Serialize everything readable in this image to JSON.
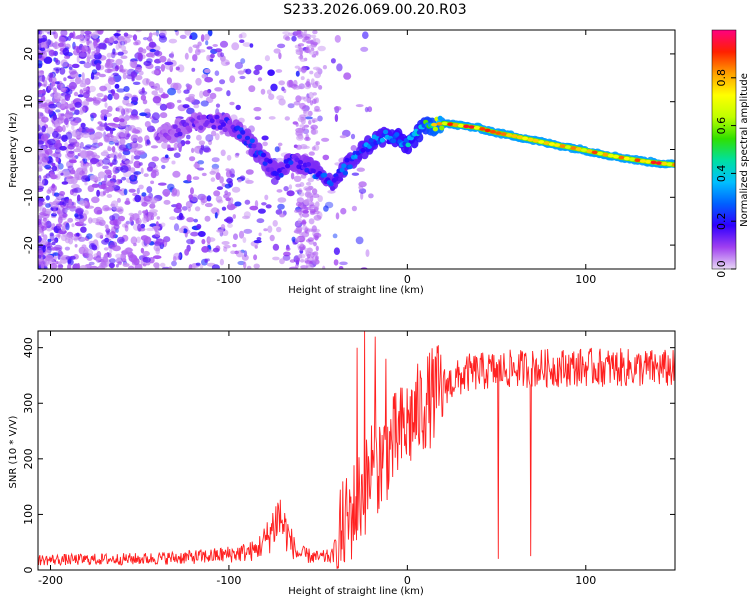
{
  "title": "S233.2026.069.00.20.R03",
  "chart_data": [
    {
      "type": "heatmap",
      "name": "spectrogram",
      "xlabel": "Height of straight line (km)",
      "ylabel": "Frequency (Hz)",
      "xlim": [
        -207,
        150
      ],
      "ylim": [
        -25,
        25
      ],
      "xticks": [
        "-200",
        "-100",
        "0",
        "100"
      ],
      "yticks": [
        "-20",
        "-10",
        "0",
        "10",
        "20"
      ],
      "colorbar": {
        "label": "Normalized spectral amplitude",
        "ticks": [
          "0.0",
          "0.2",
          "0.4",
          "0.6",
          "0.8"
        ],
        "range": [
          0,
          1
        ],
        "colors": [
          "#e8d8f5",
          "#a040f0",
          "#3000ff",
          "#0060ff",
          "#00c0ff",
          "#00e0a0",
          "#30e000",
          "#c0ff00",
          "#ffff00",
          "#ffa000",
          "#ff2000",
          "#ff0080"
        ]
      },
      "signal_trace": [
        {
          "x": -140,
          "f": 3.0,
          "a": 0.15
        },
        {
          "x": -130,
          "f": 4.0,
          "a": 0.18
        },
        {
          "x": -120,
          "f": 5.5,
          "a": 0.2
        },
        {
          "x": -110,
          "f": 6.0,
          "a": 0.22
        },
        {
          "x": -100,
          "f": 5.0,
          "a": 0.25
        },
        {
          "x": -92,
          "f": 3.0,
          "a": 0.3
        },
        {
          "x": -85,
          "f": 0.0,
          "a": 0.32
        },
        {
          "x": -78,
          "f": -3.0,
          "a": 0.3
        },
        {
          "x": -72,
          "f": -5.0,
          "a": 0.32
        },
        {
          "x": -65,
          "f": -2.5,
          "a": 0.3
        },
        {
          "x": -58,
          "f": -3.0,
          "a": 0.3
        },
        {
          "x": -50,
          "f": -5.0,
          "a": 0.35
        },
        {
          "x": -42,
          "f": -7.0,
          "a": 0.35
        },
        {
          "x": -35,
          "f": -4.0,
          "a": 0.4
        },
        {
          "x": -28,
          "f": -1.0,
          "a": 0.4
        },
        {
          "x": -20,
          "f": 1.5,
          "a": 0.45
        },
        {
          "x": -12,
          "f": 3.0,
          "a": 0.45
        },
        {
          "x": -5,
          "f": 2.0,
          "a": 0.5
        },
        {
          "x": 0,
          "f": 1.0,
          "a": 0.5
        },
        {
          "x": 5,
          "f": 3.0,
          "a": 0.55
        },
        {
          "x": 12,
          "f": 5.0,
          "a": 0.7
        },
        {
          "x": 20,
          "f": 5.5,
          "a": 0.9
        },
        {
          "x": 30,
          "f": 5.0,
          "a": 0.95
        },
        {
          "x": 40,
          "f": 4.5,
          "a": 0.95
        },
        {
          "x": 50,
          "f": 3.5,
          "a": 0.95
        },
        {
          "x": 60,
          "f": 2.8,
          "a": 0.95
        },
        {
          "x": 70,
          "f": 2.0,
          "a": 0.95
        },
        {
          "x": 80,
          "f": 1.2,
          "a": 0.95
        },
        {
          "x": 90,
          "f": 0.5,
          "a": 0.95
        },
        {
          "x": 100,
          "f": -0.2,
          "a": 0.95
        },
        {
          "x": 110,
          "f": -1.0,
          "a": 0.95
        },
        {
          "x": 120,
          "f": -1.7,
          "a": 0.95
        },
        {
          "x": 130,
          "f": -2.3,
          "a": 0.95
        },
        {
          "x": 140,
          "f": -2.8,
          "a": 0.95
        },
        {
          "x": 150,
          "f": -3.2,
          "a": 0.95
        }
      ]
    },
    {
      "type": "line",
      "name": "snr",
      "xlabel": "Height of straight line (km)",
      "ylabel": "SNR (10 * V/V)",
      "xlim": [
        -207,
        150
      ],
      "ylim": [
        0,
        430
      ],
      "xticks": [
        "-200",
        "-100",
        "0",
        "100"
      ],
      "yticks": [
        "0",
        "100",
        "200",
        "300",
        "400"
      ],
      "color": "#ff2020",
      "envelope": [
        {
          "x": -207,
          "y": 18
        },
        {
          "x": -150,
          "y": 20
        },
        {
          "x": -130,
          "y": 22
        },
        {
          "x": -110,
          "y": 25
        },
        {
          "x": -95,
          "y": 30
        },
        {
          "x": -85,
          "y": 35
        },
        {
          "x": -78,
          "y": 60
        },
        {
          "x": -72,
          "y": 100
        },
        {
          "x": -68,
          "y": 70
        },
        {
          "x": -62,
          "y": 30
        },
        {
          "x": -50,
          "y": 22
        },
        {
          "x": -42,
          "y": 25
        },
        {
          "x": -38,
          "y": 60
        },
        {
          "x": -30,
          "y": 110
        },
        {
          "x": -22,
          "y": 160
        },
        {
          "x": -12,
          "y": 210
        },
        {
          "x": -5,
          "y": 240
        },
        {
          "x": 0,
          "y": 260
        },
        {
          "x": 10,
          "y": 300
        },
        {
          "x": 20,
          "y": 330
        },
        {
          "x": 35,
          "y": 355
        },
        {
          "x": 60,
          "y": 362
        },
        {
          "x": 100,
          "y": 365
        },
        {
          "x": 150,
          "y": 362
        }
      ],
      "dropouts": [
        {
          "x": 51,
          "y": 20
        },
        {
          "x": 69,
          "y": 25
        },
        {
          "x": -25,
          "y": 130
        }
      ],
      "spikes": [
        {
          "x": -24,
          "y": 430
        },
        {
          "x": -18,
          "y": 420
        },
        {
          "x": -28,
          "y": 400
        },
        {
          "x": -12,
          "y": 380
        },
        {
          "x": -20,
          "y": 260
        }
      ]
    }
  ]
}
